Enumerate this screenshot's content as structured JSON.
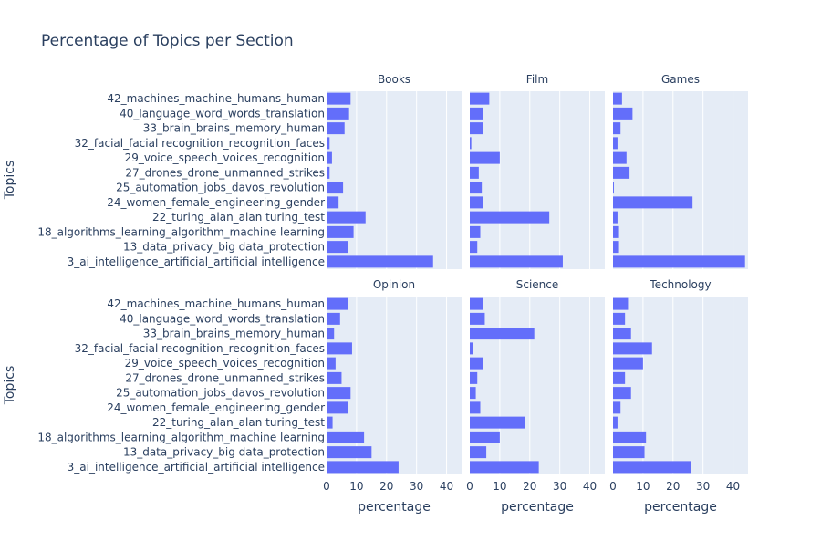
{
  "chart_data": {
    "type": "bar",
    "orientation": "horizontal",
    "title": "Percentage of Topics per Section",
    "xlabel": "percentage",
    "ylabel": "Topics",
    "xlim": [
      0,
      45
    ],
    "x_ticks": [
      0,
      10,
      20,
      30,
      40
    ],
    "bar_color": "#636efa",
    "panel_background": "#e5ecf6",
    "gridline_color": "#ffffff",
    "title_color": "#2a3f5f",
    "grid": true,
    "categories": [
      "42_machines_machine_humans_human",
      "40_language_word_words_translation",
      "33_brain_brains_memory_human",
      "32_facial_facial recognition_recognition_faces",
      "29_voice_speech_voices_recognition",
      "27_drones_drone_unmanned_strikes",
      "25_automation_jobs_davos_revolution",
      "24_women_female_engineering_gender",
      "22_turing_alan_alan turing_test",
      "18_algorithms_learning_algorithm_machine learning",
      "13_data_privacy_big data_protection",
      "3_ai_intelligence_artificial_artificial intelligence"
    ],
    "panels": [
      {
        "name": "Books",
        "values": [
          8.0,
          7.5,
          6.0,
          1.0,
          1.8,
          1.0,
          5.5,
          4.0,
          13.0,
          9.0,
          7.0,
          35.5
        ]
      },
      {
        "name": "Film",
        "values": [
          6.5,
          4.5,
          4.5,
          0.5,
          10.0,
          3.0,
          4.0,
          4.5,
          26.5,
          3.5,
          2.5,
          31.0
        ]
      },
      {
        "name": "Games",
        "values": [
          3.0,
          6.5,
          2.5,
          1.5,
          4.5,
          5.5,
          0.3,
          26.5,
          1.5,
          2.0,
          2.0,
          44.0
        ]
      },
      {
        "name": "Opinion",
        "values": [
          7.0,
          4.5,
          2.5,
          8.5,
          3.0,
          5.0,
          8.0,
          7.0,
          2.0,
          12.5,
          15.0,
          24.0
        ]
      },
      {
        "name": "Science",
        "values": [
          4.5,
          5.0,
          21.5,
          1.0,
          4.5,
          2.5,
          2.0,
          3.5,
          18.5,
          10.0,
          5.5,
          23.0
        ]
      },
      {
        "name": "Technology",
        "values": [
          5.0,
          4.0,
          6.0,
          13.0,
          10.0,
          4.0,
          6.0,
          2.5,
          1.5,
          11.0,
          10.5,
          26.0
        ]
      }
    ]
  }
}
